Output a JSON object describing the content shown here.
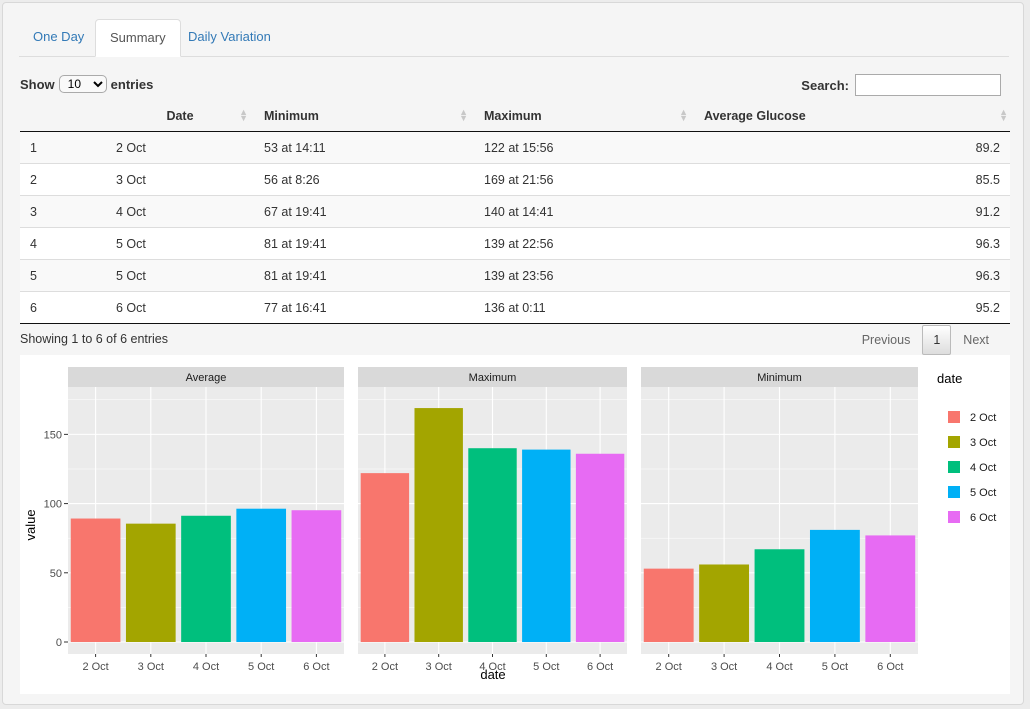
{
  "tabs": [
    {
      "label": "One Day",
      "active": false
    },
    {
      "label": "Summary",
      "active": true
    },
    {
      "label": "Daily Variation",
      "active": false
    }
  ],
  "length_control": {
    "prefix": "Show",
    "value": "10",
    "suffix": "entries"
  },
  "search": {
    "label": "Search:",
    "value": ""
  },
  "table": {
    "columns": [
      "",
      "Date",
      "Minimum",
      "Maximum",
      "Average Glucose"
    ],
    "rows": [
      [
        "1",
        "2 Oct",
        "53 at 14:11",
        "122 at 15:56",
        "89.2"
      ],
      [
        "2",
        "3 Oct",
        "56 at 8:26",
        "169 at 21:56",
        "85.5"
      ],
      [
        "3",
        "4 Oct",
        "67 at 19:41",
        "140 at 14:41",
        "91.2"
      ],
      [
        "4",
        "5 Oct",
        "81 at 19:41",
        "139 at 22:56",
        "96.3"
      ],
      [
        "5",
        "5 Oct",
        "81 at 19:41",
        "139 at 23:56",
        "96.3"
      ],
      [
        "6",
        "6 Oct",
        "77 at 16:41",
        "136 at 0:11",
        "95.2"
      ]
    ]
  },
  "info": "Showing 1 to 6 of 6 entries",
  "pagination": {
    "previous": "Previous",
    "current": "1",
    "next": "Next"
  },
  "colors": {
    "link": "#337ab7",
    "panel_bg": "#ebebeb",
    "strip_bg": "#d9d9d9",
    "gridline": "#ffffff"
  },
  "chart_data": {
    "type": "bar",
    "facets": [
      "Average",
      "Maximum",
      "Minimum"
    ],
    "categories": [
      "2 Oct",
      "3 Oct",
      "4 Oct",
      "5 Oct",
      "6 Oct"
    ],
    "category_colors": [
      "#F8766D",
      "#A3A500",
      "#00BF7D",
      "#00B0F6",
      "#E76BF3"
    ],
    "values": {
      "Average": [
        89.2,
        85.5,
        91.2,
        96.3,
        95.2
      ],
      "Maximum": [
        122,
        169,
        140,
        139,
        136
      ],
      "Minimum": [
        53,
        56,
        67,
        81,
        77
      ]
    },
    "xlabel": "date",
    "ylabel": "value",
    "yticks": [
      0,
      50,
      100,
      150
    ],
    "ylim": [
      0,
      177
    ],
    "legend": {
      "title": "date",
      "position": "right",
      "labels": [
        "2 Oct",
        "3 Oct",
        "4 Oct",
        "5 Oct",
        "6 Oct"
      ]
    },
    "grid": true
  }
}
